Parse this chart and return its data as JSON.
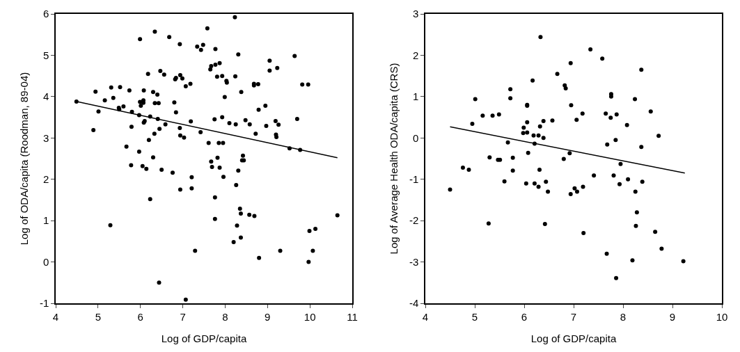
{
  "chart_data": [
    {
      "type": "scatter",
      "xlabel": "Log of GDP/capita",
      "ylabel": "Log of ODA/capita (Roodman, 89-04)",
      "xlim": [
        4,
        11
      ],
      "xticks": [
        4,
        5,
        6,
        7,
        8,
        9,
        10,
        11
      ],
      "ylim": [
        -1,
        6
      ],
      "yticks": [
        -1,
        0,
        1,
        2,
        3,
        4,
        5,
        6
      ],
      "grid": false,
      "series": [
        {
          "marker": "circle",
          "color": "#000000",
          "x": [
            4.49,
            4.89,
            4.94,
            5.01,
            5.16,
            5.29,
            5.31,
            5.36,
            5.49,
            5.5,
            5.52,
            5.6,
            5.67,
            5.74,
            5.78,
            5.79,
            5.8,
            5.97,
            5.97,
            5.99,
            5.99,
            6.01,
            6.05,
            6.07,
            6.07,
            6.08,
            6.08,
            6.1,
            6.14,
            6.18,
            6.2,
            6.23,
            6.23,
            6.3,
            6.3,
            6.33,
            6.34,
            6.4,
            6.41,
            6.34,
            6.43,
            6.44,
            6.45,
            6.47,
            6.5,
            6.56,
            6.59,
            6.68,
            6.76,
            6.8,
            6.82,
            6.84,
            6.84,
            6.93,
            6.93,
            6.94,
            6.94,
            6.94,
            6.99,
            7.03,
            7.07,
            7.07,
            7.18,
            7.19,
            7.21,
            7.21,
            7.29,
            7.34,
            7.42,
            7.43,
            7.48,
            7.58,
            7.61,
            7.65,
            7.67,
            7.67,
            7.69,
            7.75,
            7.76,
            7.76,
            7.77,
            7.77,
            7.81,
            7.82,
            7.85,
            7.87,
            7.87,
            7.93,
            7.93,
            7.95,
            7.96,
            7.99,
            8.03,
            8.04,
            8.1,
            8.2,
            8.23,
            8.24,
            8.25,
            8.26,
            8.28,
            8.31,
            8.31,
            8.35,
            8.37,
            8.37,
            8.38,
            8.4,
            8.42,
            8.44,
            8.48,
            8.57,
            8.58,
            8.68,
            8.68,
            8.69,
            8.72,
            8.78,
            8.79,
            8.8,
            8.95,
            8.97,
            9.05,
            9.05,
            9.19,
            9.2,
            9.21,
            9.23,
            9.26,
            9.3,
            9.52,
            9.64,
            9.7,
            9.77,
            9.82,
            9.96,
            9.97,
            9.99,
            10.07,
            10.13,
            10.65
          ],
          "values": [
            3.88,
            3.19,
            4.12,
            3.64,
            3.91,
            0.89,
            4.22,
            3.97,
            3.73,
            3.69,
            4.23,
            3.76,
            2.79,
            4.15,
            2.34,
            3.27,
            3.63,
            2.67,
            3.55,
            5.39,
            3.87,
            3.78,
            2.32,
            3.91,
            3.85,
            4.15,
            3.37,
            3.41,
            2.25,
            4.55,
            2.95,
            1.52,
            3.52,
            4.11,
            2.53,
            3.1,
            5.57,
            4.05,
            3.46,
            3.84,
            3.84,
            -0.5,
            3.22,
            4.62,
            2.23,
            4.53,
            3.33,
            5.44,
            2.16,
            3.86,
            4.42,
            4.45,
            3.62,
            5.27,
            3.24,
            4.52,
            3.06,
            1.75,
            4.44,
            3.01,
            4.25,
            -0.91,
            4.31,
            3.4,
            2.05,
            1.78,
            0.27,
            5.21,
            3.14,
            5.13,
            5.25,
            5.65,
            2.88,
            4.66,
            4.74,
            2.43,
            2.3,
            3.45,
            1.56,
            1.04,
            5.15,
            4.77,
            4.48,
            2.52,
            2.88,
            4.81,
            2.28,
            4.5,
            3.5,
            2.88,
            2.06,
            3.99,
            4.38,
            4.34,
            3.36,
            0.48,
            5.92,
            4.49,
            3.33,
            1.86,
            0.88,
            5.02,
            2.21,
            1.29,
            1.17,
            0.59,
            4.11,
            2.46,
            2.57,
            2.46,
            3.43,
            1.14,
            3.33,
            4.31,
            4.27,
            1.11,
            3.1,
            4.3,
            3.68,
            0.1,
            3.78,
            3.29,
            4.87,
            4.63,
            3.41,
            3.08,
            3.02,
            4.69,
            3.32,
            0.27,
            2.75,
            4.98,
            3.46,
            2.71,
            4.29,
            4.29,
            0,
            0.75,
            0.27,
            0.8,
            1.13
          ]
        },
        {
          "type": "line",
          "color": "#000000",
          "x": [
            4.5,
            10.65
          ],
          "values": [
            3.88,
            2.52
          ]
        }
      ]
    },
    {
      "type": "scatter",
      "xlabel": "Log of GDP/capita",
      "ylabel": "Log of Average Health ODA/capita (CRS)",
      "xlim": [
        4,
        10
      ],
      "xticks": [
        4,
        5,
        6,
        7,
        8,
        9,
        10
      ],
      "ylim": [
        -4,
        3
      ],
      "yticks": [
        -4,
        -3,
        -2,
        -1,
        0,
        1,
        2,
        3
      ],
      "grid": false,
      "series": [
        {
          "marker": "circle",
          "color": "#000000",
          "x": [
            4.5,
            4.76,
            4.88,
            4.95,
            5.01,
            5.16,
            5.28,
            5.3,
            5.36,
            5.47,
            5.49,
            5.51,
            5.6,
            5.67,
            5.72,
            5.72,
            5.77,
            5.77,
            5.98,
            5.99,
            6.04,
            6.06,
            6.06,
            6.06,
            6.06,
            6.08,
            6.17,
            6.19,
            6.21,
            6.21,
            6.29,
            6.29,
            6.31,
            6.32,
            6.33,
            6.39,
            6.39,
            6.42,
            6.44,
            6.48,
            6.57,
            6.67,
            6.8,
            6.82,
            6.84,
            6.92,
            6.94,
            6.94,
            6.95,
            7.02,
            7.06,
            7.07,
            7.18,
            7.19,
            7.2,
            7.34,
            7.41,
            7.58,
            7.65,
            7.67,
            7.68,
            7.75,
            7.76,
            7.76,
            7.81,
            7.85,
            7.86,
            7.87,
            7.93,
            7.95,
            8.08,
            8.1,
            8.19,
            8.24,
            8.25,
            8.26,
            8.28,
            8.37,
            8.37,
            8.39,
            8.56,
            8.65,
            8.72,
            8.78,
            9.22
          ],
          "values": [
            -1.25,
            -0.72,
            -0.77,
            0.34,
            0.94,
            0.54,
            -2.07,
            -0.47,
            0.54,
            -0.53,
            0.57,
            -0.53,
            -1.05,
            -0.11,
            1.18,
            0.96,
            -0.48,
            -0.79,
            0.12,
            0.25,
            -1.1,
            0.8,
            0.78,
            0.13,
            0.38,
            -0.36,
            1.39,
            0.06,
            -1.1,
            -0.14,
            0.06,
            -1.18,
            -0.77,
            0.28,
            2.44,
            0,
            0.41,
            -2.08,
            -1.06,
            -1.3,
            0.42,
            1.55,
            -0.51,
            1.27,
            1.2,
            -0.37,
            1.81,
            -1.36,
            0.79,
            -1.22,
            0.44,
            -1.3,
            0.59,
            -1.18,
            -2.3,
            2.14,
            -0.91,
            1.92,
            0.59,
            -2.8,
            -0.16,
            0.49,
            1.06,
            1,
            -0.91,
            -0.05,
            -3.39,
            0.57,
            -1.12,
            -0.63,
            0.31,
            -1,
            -2.96,
            0.94,
            -1.3,
            -2.13,
            -1.8,
            1.65,
            -0.22,
            -1.06,
            0.64,
            -2.27,
            0.05,
            -2.68,
            -2.98
          ]
        },
        {
          "type": "line",
          "color": "#000000",
          "x": [
            4.5,
            9.25
          ],
          "values": [
            0.27,
            -0.85
          ]
        }
      ]
    }
  ]
}
